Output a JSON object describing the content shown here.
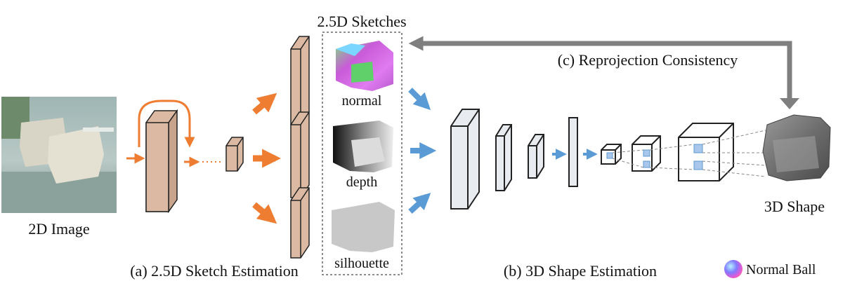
{
  "header": {
    "sketches_title": "2.5D Sketches"
  },
  "input": {
    "label": "2D Image"
  },
  "sketches": [
    {
      "id": "normal",
      "label": "normal"
    },
    {
      "id": "depth",
      "label": "depth"
    },
    {
      "id": "silhouette",
      "label": "silhouette"
    }
  ],
  "stages": {
    "a": "(a) 2.5D Sketch Estimation",
    "b": "(b) 3D Shape Estimation",
    "c": "(c) Reprojection Consistency"
  },
  "output": {
    "label": "3D Shape"
  },
  "legend": {
    "label": "Normal Ball"
  },
  "colors": {
    "orange_arrow": "#ee7d32",
    "blue_arrow": "#5b9bd5",
    "plate_fill": "#dcb9a2",
    "encoder_fill": "#e8ebf0",
    "feedback_arrow": "#7f7f7f"
  }
}
